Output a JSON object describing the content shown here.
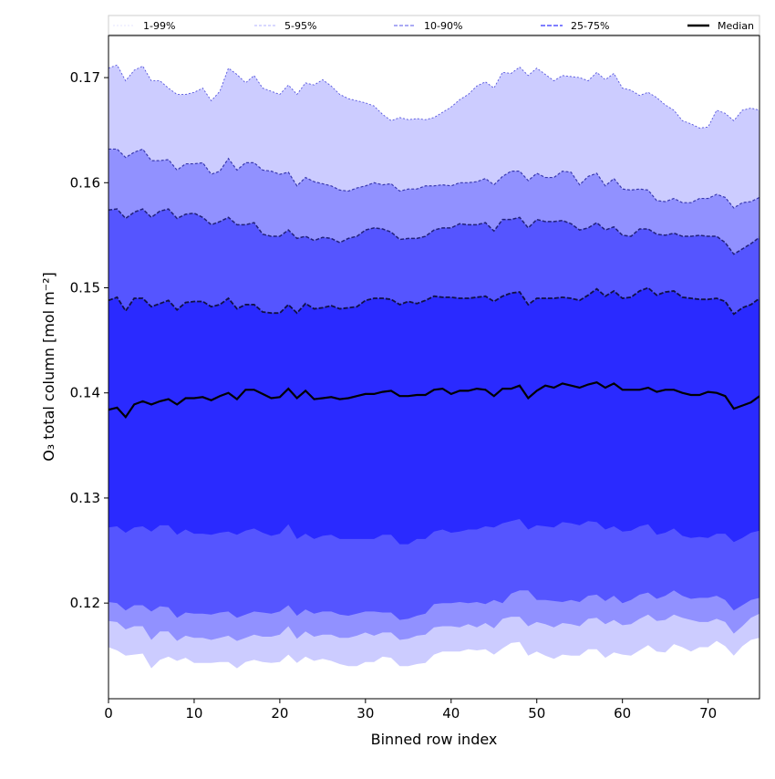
{
  "chart_data": {
    "type": "area",
    "title": "",
    "xlabel": "Binned row index",
    "ylabel": "O₃ total column [mol m⁻²]",
    "xlim": [
      0,
      76
    ],
    "ylim": [
      0.1109,
      0.174
    ],
    "xticks": [
      0,
      10,
      20,
      30,
      40,
      50,
      60,
      70
    ],
    "xtick_labels": [
      "0",
      "10",
      "20",
      "30",
      "40",
      "50",
      "60",
      "70"
    ],
    "yticks": [
      0.12,
      0.13,
      0.14,
      0.15,
      0.16,
      0.17
    ],
    "ytick_labels": [
      "0.12",
      "0.13",
      "0.14",
      "0.15",
      "0.16",
      "0.17"
    ],
    "grid": false,
    "legend_position": "top",
    "legend": [
      {
        "label": "1-99%",
        "color": "#ccccff"
      },
      {
        "label": "5-95%",
        "color": "#9191ff"
      },
      {
        "label": "10-90%",
        "color": "#5555ff"
      },
      {
        "label": "25-75%",
        "color": "#2a2aff"
      },
      {
        "label": "Median",
        "color": "#000000"
      }
    ],
    "bands": [
      {
        "name": "1-99%",
        "color": "#ccccff",
        "line": "#5555dd",
        "upper": [
          0.1709,
          0.1712,
          0.1697,
          0.1707,
          0.1711,
          0.1697,
          0.1697,
          0.169,
          0.1684,
          0.1684,
          0.1686,
          0.169,
          0.1678,
          0.1687,
          0.1709,
          0.1703,
          0.1695,
          0.1702,
          0.169,
          0.1687,
          0.1684,
          0.1693,
          0.1684,
          0.1695,
          0.1693,
          0.1698,
          0.1692,
          0.1684,
          0.168,
          0.1678,
          0.1676,
          0.1673,
          0.1665,
          0.1659,
          0.1662,
          0.166,
          0.1661,
          0.166,
          0.1662,
          0.1667,
          0.1672,
          0.1679,
          0.1684,
          0.1692,
          0.1696,
          0.169,
          0.1705,
          0.1704,
          0.171,
          0.1702,
          0.1709,
          0.1703,
          0.1697,
          0.1702,
          0.1701,
          0.17,
          0.1697,
          0.1705,
          0.1698,
          0.1704,
          0.169,
          0.1688,
          0.1683,
          0.1686,
          0.1681,
          0.1674,
          0.1669,
          0.1659,
          0.1656,
          0.1652,
          0.1653,
          0.1669,
          0.1666,
          0.1659,
          0.1669,
          0.1671,
          0.1669
        ],
        "lower": [
          0.1158,
          0.1155,
          0.115,
          0.1151,
          0.1152,
          0.1138,
          0.1146,
          0.1149,
          0.1145,
          0.1148,
          0.1143,
          0.1143,
          0.1143,
          0.1144,
          0.1144,
          0.1138,
          0.1144,
          0.1146,
          0.1144,
          0.1143,
          0.1144,
          0.1151,
          0.1143,
          0.1149,
          0.1145,
          0.1147,
          0.1145,
          0.1142,
          0.114,
          0.114,
          0.1144,
          0.1144,
          0.1149,
          0.1148,
          0.114,
          0.114,
          0.1142,
          0.1143,
          0.1151,
          0.1154,
          0.1154,
          0.1154,
          0.1156,
          0.1155,
          0.1156,
          0.1151,
          0.1157,
          0.1162,
          0.1163,
          0.115,
          0.1154,
          0.115,
          0.1147,
          0.1151,
          0.115,
          0.115,
          0.1156,
          0.1156,
          0.1148,
          0.1153,
          0.1151,
          0.115,
          0.1155,
          0.116,
          0.1154,
          0.1153,
          0.1161,
          0.1158,
          0.1154,
          0.1158,
          0.1158,
          0.1164,
          0.1159,
          0.115,
          0.1159,
          0.1165,
          0.1167
        ]
      },
      {
        "name": "5-95%",
        "color": "#9191ff",
        "line": "#3a3ab0",
        "upper": [
          0.1632,
          0.1632,
          0.1624,
          0.1629,
          0.1632,
          0.1621,
          0.1621,
          0.1622,
          0.1612,
          0.1618,
          0.1618,
          0.1619,
          0.1608,
          0.1611,
          0.1623,
          0.1612,
          0.1619,
          0.1619,
          0.1612,
          0.1611,
          0.1608,
          0.161,
          0.1597,
          0.1605,
          0.1601,
          0.1599,
          0.1597,
          0.1593,
          0.1592,
          0.1595,
          0.1597,
          0.16,
          0.1598,
          0.1599,
          0.1592,
          0.1594,
          0.1594,
          0.1597,
          0.1597,
          0.1598,
          0.1597,
          0.16,
          0.16,
          0.1601,
          0.1604,
          0.1598,
          0.1606,
          0.1611,
          0.1611,
          0.1602,
          0.1609,
          0.1605,
          0.1605,
          0.1611,
          0.161,
          0.1598,
          0.1606,
          0.1609,
          0.1597,
          0.1604,
          0.1594,
          0.1593,
          0.1594,
          0.1593,
          0.1583,
          0.1582,
          0.1585,
          0.1581,
          0.1581,
          0.1585,
          0.1585,
          0.1589,
          0.1586,
          0.1576,
          0.1581,
          0.1582,
          0.1586
        ],
        "lower": [
          0.1183,
          0.1182,
          0.1175,
          0.1178,
          0.1178,
          0.1165,
          0.1173,
          0.1173,
          0.1164,
          0.1169,
          0.1167,
          0.1167,
          0.1165,
          0.1167,
          0.1169,
          0.1164,
          0.1167,
          0.117,
          0.1168,
          0.1168,
          0.117,
          0.1178,
          0.1166,
          0.1173,
          0.1168,
          0.117,
          0.117,
          0.1167,
          0.1167,
          0.1169,
          0.1172,
          0.1169,
          0.1172,
          0.1172,
          0.1165,
          0.1166,
          0.1169,
          0.117,
          0.1177,
          0.1178,
          0.1178,
          0.1177,
          0.118,
          0.1177,
          0.1181,
          0.1176,
          0.1185,
          0.1187,
          0.1187,
          0.1178,
          0.1182,
          0.118,
          0.1177,
          0.1181,
          0.118,
          0.1178,
          0.1185,
          0.1186,
          0.118,
          0.1184,
          0.1179,
          0.118,
          0.1185,
          0.1189,
          0.1183,
          0.1184,
          0.1189,
          0.1186,
          0.1184,
          0.1182,
          0.1182,
          0.1185,
          0.1182,
          0.1171,
          0.1178,
          0.1186,
          0.119
        ]
      },
      {
        "name": "10-90%",
        "color": "#5555ff",
        "line": "#22227a",
        "upper": [
          0.1574,
          0.1575,
          0.1566,
          0.1572,
          0.1575,
          0.1567,
          0.1573,
          0.1575,
          0.1566,
          0.157,
          0.1571,
          0.1567,
          0.156,
          0.1563,
          0.1567,
          0.156,
          0.156,
          0.1562,
          0.1551,
          0.1549,
          0.1549,
          0.1555,
          0.1547,
          0.1549,
          0.1545,
          0.1548,
          0.1547,
          0.1543,
          0.1547,
          0.1549,
          0.1555,
          0.1557,
          0.1556,
          0.1553,
          0.1546,
          0.1547,
          0.1547,
          0.1549,
          0.1555,
          0.1557,
          0.1557,
          0.1561,
          0.156,
          0.156,
          0.1562,
          0.1554,
          0.1565,
          0.1565,
          0.1567,
          0.1557,
          0.1565,
          0.1563,
          0.1563,
          0.1564,
          0.1561,
          0.1555,
          0.1557,
          0.1562,
          0.1555,
          0.1558,
          0.155,
          0.1549,
          0.1556,
          0.1556,
          0.1551,
          0.155,
          0.1552,
          0.1549,
          0.1549,
          0.155,
          0.1549,
          0.1549,
          0.1543,
          0.1532,
          0.1537,
          0.1542,
          0.1548
        ],
        "lower": [
          0.1201,
          0.12,
          0.1193,
          0.1198,
          0.1198,
          0.1192,
          0.1197,
          0.1196,
          0.1186,
          0.1191,
          0.119,
          0.119,
          0.1189,
          0.1191,
          0.1192,
          0.1186,
          0.1189,
          0.1192,
          0.1191,
          0.119,
          0.1192,
          0.1198,
          0.1188,
          0.1194,
          0.119,
          0.1192,
          0.1192,
          0.1189,
          0.1188,
          0.119,
          0.1192,
          0.1192,
          0.1191,
          0.1191,
          0.1184,
          0.1185,
          0.1188,
          0.119,
          0.1199,
          0.12,
          0.12,
          0.1201,
          0.12,
          0.1201,
          0.1199,
          0.1203,
          0.12,
          0.1209,
          0.1212,
          0.1212,
          0.1203,
          0.1203,
          0.1202,
          0.1201,
          0.1203,
          0.1201,
          0.1207,
          0.1208,
          0.1202,
          0.1207,
          0.12,
          0.1203,
          0.1208,
          0.121,
          0.1204,
          0.1207,
          0.1212,
          0.1207,
          0.1204,
          0.1205,
          0.1205,
          0.1207,
          0.1203,
          0.1193,
          0.1198,
          0.1203,
          0.1205
        ]
      },
      {
        "name": "25-75%",
        "color": "#2a2aff",
        "line": "#111144",
        "upper": [
          0.1488,
          0.1491,
          0.1478,
          0.149,
          0.149,
          0.1482,
          0.1485,
          0.1488,
          0.1479,
          0.1486,
          0.1487,
          0.1487,
          0.1482,
          0.1484,
          0.149,
          0.148,
          0.1484,
          0.1484,
          0.1477,
          0.1476,
          0.1476,
          0.1484,
          0.1476,
          0.1485,
          0.148,
          0.1481,
          0.1483,
          0.148,
          0.1481,
          0.1482,
          0.1488,
          0.149,
          0.149,
          0.1489,
          0.1484,
          0.1487,
          0.1485,
          0.1488,
          0.1492,
          0.1491,
          0.1491,
          0.149,
          0.149,
          0.1491,
          0.1492,
          0.1487,
          0.1492,
          0.1495,
          0.1496,
          0.1484,
          0.149,
          0.149,
          0.149,
          0.1491,
          0.149,
          0.1488,
          0.1493,
          0.1499,
          0.1492,
          0.1497,
          0.149,
          0.1491,
          0.1497,
          0.15,
          0.1493,
          0.1496,
          0.1497,
          0.1491,
          0.149,
          0.1489,
          0.1489,
          0.149,
          0.1487,
          0.1475,
          0.1481,
          0.1484,
          0.149
        ],
        "lower": [
          0.1272,
          0.1273,
          0.1267,
          0.1272,
          0.1273,
          0.1268,
          0.1274,
          0.1274,
          0.1265,
          0.127,
          0.1266,
          0.1266,
          0.1265,
          0.1267,
          0.1268,
          0.1265,
          0.1269,
          0.1271,
          0.1267,
          0.1264,
          0.1266,
          0.1275,
          0.1261,
          0.1266,
          0.1261,
          0.1264,
          0.1265,
          0.1261,
          0.1261,
          0.1261,
          0.1261,
          0.1261,
          0.1265,
          0.1265,
          0.1256,
          0.1256,
          0.1261,
          0.1261,
          0.1268,
          0.127,
          0.1267,
          0.1268,
          0.127,
          0.127,
          0.1273,
          0.1272,
          0.1276,
          0.1278,
          0.128,
          0.127,
          0.1274,
          0.1273,
          0.1272,
          0.1277,
          0.1276,
          0.1274,
          0.1278,
          0.1277,
          0.127,
          0.1273,
          0.1268,
          0.1269,
          0.1273,
          0.1275,
          0.1265,
          0.1267,
          0.1271,
          0.1264,
          0.1262,
          0.1263,
          0.1262,
          0.1266,
          0.1266,
          0.1258,
          0.1262,
          0.1267,
          0.1269
        ]
      }
    ],
    "median": {
      "name": "Median",
      "color": "#000000",
      "values": [
        0.1384,
        0.1386,
        0.1377,
        0.1389,
        0.1392,
        0.1389,
        0.1392,
        0.1394,
        0.1389,
        0.1395,
        0.1395,
        0.1396,
        0.1393,
        0.1397,
        0.14,
        0.1394,
        0.1403,
        0.1403,
        0.1399,
        0.1395,
        0.1396,
        0.1404,
        0.1395,
        0.1402,
        0.1394,
        0.1395,
        0.1396,
        0.1394,
        0.1395,
        0.1397,
        0.1399,
        0.1399,
        0.1401,
        0.1402,
        0.1397,
        0.1397,
        0.1398,
        0.1398,
        0.1403,
        0.1404,
        0.1399,
        0.1402,
        0.1402,
        0.1404,
        0.1403,
        0.1397,
        0.1404,
        0.1404,
        0.1407,
        0.1395,
        0.1402,
        0.1407,
        0.1405,
        0.1409,
        0.1407,
        0.1405,
        0.1408,
        0.141,
        0.1405,
        0.1409,
        0.1403,
        0.1403,
        0.1403,
        0.1405,
        0.1401,
        0.1403,
        0.1403,
        0.14,
        0.1398,
        0.1398,
        0.1401,
        0.14,
        0.1397,
        0.1385,
        0.1388,
        0.1391,
        0.1397
      ]
    }
  }
}
